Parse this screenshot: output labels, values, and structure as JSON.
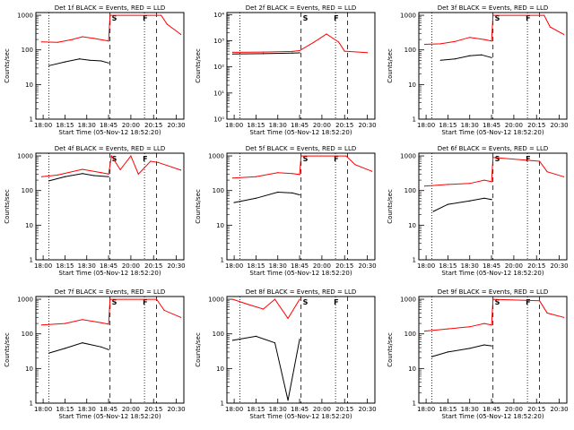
{
  "figure": {
    "ylabel": "Counts/sec",
    "xlabel": "Start Time (05-Nov-12 18:52:20)",
    "x_ticks": [
      "18:00",
      "18:15",
      "18:30",
      "18:45",
      "20:00",
      "20:15",
      "20:30"
    ],
    "y_ticks": [
      "1",
      "10",
      "100",
      "1000"
    ],
    "colors": {
      "events": "#000000",
      "lld": "#ff0000"
    },
    "flags": {
      "S": "S",
      "F": "F"
    }
  },
  "chart_data": [
    {
      "type": "line",
      "title": "Det 1f BLACK = Events, RED = LLD",
      "ylim": [
        1,
        1200
      ],
      "yscale": "log",
      "series": [
        {
          "name": "Events",
          "x": [
            "18:04",
            "18:15",
            "18:25",
            "18:32",
            "18:40",
            "18:45"
          ],
          "y": [
            35,
            45,
            55,
            50,
            48,
            42
          ]
        },
        {
          "name": "LLD",
          "x": [
            "17:59",
            "18:10",
            "18:20",
            "18:27",
            "18:35",
            "18:45",
            "18:46",
            "20:20",
            "20:24",
            "20:33"
          ],
          "y": [
            170,
            165,
            200,
            240,
            215,
            180,
            1000,
            1000,
            550,
            280
          ]
        }
      ]
    },
    {
      "type": "line",
      "title": "Det 2f BLACK = Events, RED = LLD",
      "ylim": [
        1,
        12000
      ],
      "yscale": "log",
      "series": [
        {
          "name": "Events",
          "x": [
            "17:59",
            "18:20",
            "18:40",
            "18:45"
          ],
          "y": [
            310,
            320,
            340,
            345
          ]
        },
        {
          "name": "LLD",
          "x": [
            "17:59",
            "18:20",
            "18:40",
            "18:45",
            "19:55",
            "20:03",
            "20:11",
            "20:15",
            "20:30"
          ],
          "y": [
            360,
            370,
            390,
            420,
            900,
            1800,
            900,
            400,
            350
          ]
        }
      ]
    },
    {
      "type": "line",
      "title": "Det 3f BLACK = Events, RED = LLD",
      "ylim": [
        1,
        1200
      ],
      "yscale": "log",
      "series": [
        {
          "name": "Events",
          "x": [
            "18:10",
            "18:20",
            "18:30",
            "18:38",
            "18:45"
          ],
          "y": [
            50,
            55,
            68,
            72,
            60
          ]
        },
        {
          "name": "LLD",
          "x": [
            "17:59",
            "18:10",
            "18:20",
            "18:30",
            "18:40",
            "18:45",
            "18:46",
            "20:20",
            "20:24",
            "20:33"
          ],
          "y": [
            145,
            150,
            175,
            230,
            200,
            180,
            1000,
            1000,
            460,
            280
          ]
        }
      ]
    },
    {
      "type": "line",
      "title": "Det 4f BLACK = Events, RED = LLD",
      "ylim": [
        1,
        1200
      ],
      "yscale": "log",
      "series": [
        {
          "name": "Events",
          "x": [
            "18:04",
            "18:15",
            "18:27",
            "18:35",
            "18:45"
          ],
          "y": [
            190,
            250,
            310,
            270,
            250
          ]
        },
        {
          "name": "LLD",
          "x": [
            "17:59",
            "18:10",
            "18:27",
            "18:40",
            "18:45",
            "18:47",
            "19:53",
            "20:00",
            "20:05",
            "20:13",
            "20:18",
            "20:33"
          ],
          "y": [
            250,
            280,
            410,
            330,
            300,
            1000,
            400,
            1000,
            300,
            700,
            650,
            390
          ]
        }
      ]
    },
    {
      "type": "line",
      "title": "Det 5f BLACK = Events, RED = LLD",
      "ylim": [
        1,
        1200
      ],
      "yscale": "log",
      "series": [
        {
          "name": "Events",
          "x": [
            "18:00",
            "18:15",
            "18:30",
            "18:40",
            "18:45"
          ],
          "y": [
            45,
            60,
            90,
            85,
            75
          ]
        },
        {
          "name": "LLD",
          "x": [
            "17:59",
            "18:15",
            "18:30",
            "18:40",
            "18:45",
            "18:46",
            "20:16",
            "20:22",
            "20:33"
          ],
          "y": [
            230,
            250,
            330,
            310,
            290,
            1000,
            1000,
            560,
            360
          ]
        }
      ]
    },
    {
      "type": "line",
      "title": "Det 6f BLACK = Events, RED = LLD",
      "ylim": [
        1,
        1200
      ],
      "yscale": "log",
      "series": [
        {
          "name": "Events",
          "x": [
            "18:05",
            "18:15",
            "18:30",
            "18:40",
            "18:45"
          ],
          "y": [
            25,
            40,
            50,
            60,
            55
          ]
        },
        {
          "name": "LLD",
          "x": [
            "17:59",
            "18:15",
            "18:30",
            "18:40",
            "18:45",
            "18:46",
            "20:17",
            "20:22",
            "20:33"
          ],
          "y": [
            135,
            150,
            160,
            200,
            180,
            900,
            700,
            350,
            250
          ]
        }
      ]
    },
    {
      "type": "line",
      "title": "Det 7f BLACK = Events, RED = LLD",
      "ylim": [
        1,
        1200
      ],
      "yscale": "log",
      "series": [
        {
          "name": "Events",
          "x": [
            "18:04",
            "18:15",
            "18:27",
            "18:40",
            "18:45"
          ],
          "y": [
            28,
            38,
            55,
            42,
            35
          ]
        },
        {
          "name": "LLD",
          "x": [
            "17:59",
            "18:15",
            "18:27",
            "18:40",
            "18:45",
            "18:46",
            "20:17",
            "20:22",
            "20:33"
          ],
          "y": [
            180,
            200,
            260,
            210,
            190,
            1000,
            1000,
            480,
            300
          ]
        }
      ]
    },
    {
      "type": "line",
      "title": "Det 8f BLACK = Events, RED = LLD",
      "ylim": [
        1,
        1200
      ],
      "yscale": "log",
      "series": [
        {
          "name": "Events",
          "x": [
            "17:59",
            "18:15",
            "18:28",
            "18:37",
            "18:45"
          ],
          "y": [
            65,
            85,
            55,
            1.2,
            70
          ]
        },
        {
          "name": "LLD",
          "x": [
            "17:59",
            "18:10",
            "18:20",
            "18:28",
            "18:37",
            "18:45"
          ],
          "y": [
            1000,
            700,
            520,
            1000,
            280,
            1000
          ]
        }
      ]
    },
    {
      "type": "line",
      "title": "Det 9f BLACK = Events, RED = LLD",
      "ylim": [
        1,
        1200
      ],
      "yscale": "log",
      "series": [
        {
          "name": "Events",
          "x": [
            "18:04",
            "18:15",
            "18:30",
            "18:40",
            "18:45"
          ],
          "y": [
            22,
            30,
            38,
            48,
            45
          ]
        },
        {
          "name": "LLD",
          "x": [
            "17:59",
            "18:15",
            "18:30",
            "18:40",
            "18:45",
            "18:46",
            "20:17",
            "20:22",
            "20:33"
          ],
          "y": [
            120,
            140,
            160,
            200,
            180,
            1000,
            900,
            400,
            300
          ]
        }
      ]
    }
  ]
}
